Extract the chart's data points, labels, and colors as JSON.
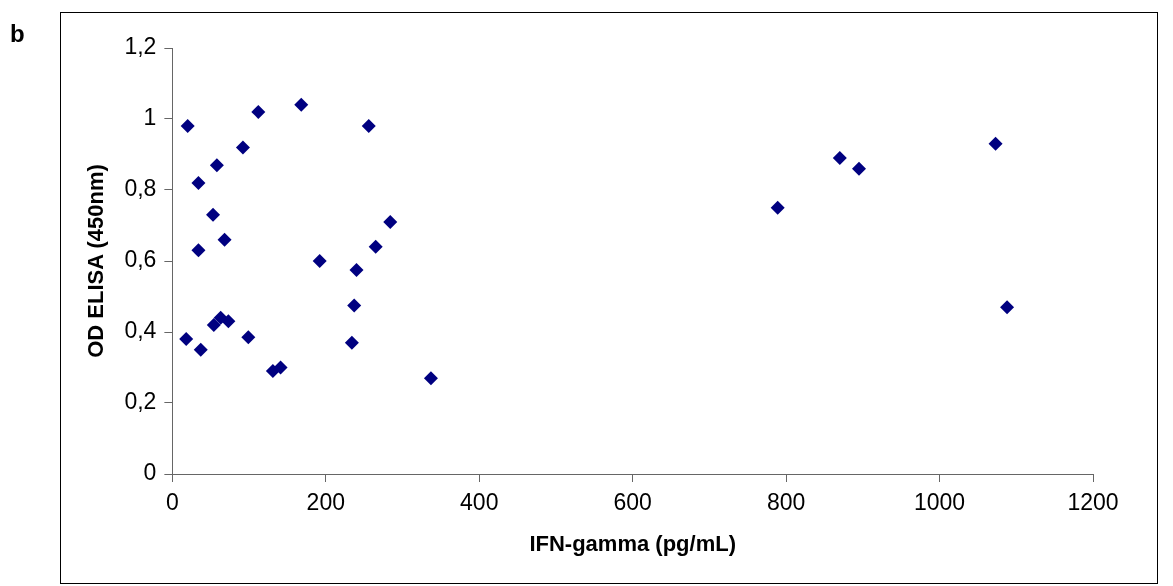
{
  "chart_data": {
    "type": "scatter",
    "xlabel": "IFN-gamma (pg/mL)",
    "ylabel": "OD ELISA (450nm)",
    "annotations": [
      "b"
    ],
    "x": [
      20,
      34,
      34,
      18,
      37,
      53,
      58,
      68,
      54,
      63,
      73,
      99,
      92,
      112,
      168,
      131,
      141,
      192,
      256,
      240,
      237,
      234,
      265,
      284,
      337,
      789,
      870,
      895,
      1073,
      1088
    ],
    "series": [
      {
        "color": "#000080",
        "values": [
          0.98,
          0.82,
          0.63,
          0.38,
          0.35,
          0.73,
          0.87,
          0.66,
          0.42,
          0.44,
          0.43,
          0.385,
          0.92,
          1.02,
          1.04,
          0.29,
          0.3,
          0.6,
          0.98,
          0.575,
          0.475,
          0.37,
          0.64,
          0.71,
          0.27,
          0.75,
          0.89,
          0.86,
          0.93,
          0.47
        ]
      }
    ],
    "xlim": [
      0,
      1200
    ],
    "xticks": [
      0,
      200,
      400,
      600,
      800,
      1000,
      1200
    ],
    "ylim": [
      0,
      1.2
    ],
    "yticks": [
      0,
      {
        "value": 0.2,
        "label": "0,2"
      },
      {
        "value": 0.4,
        "label": "0,4"
      },
      {
        "value": 0.6,
        "label": "0,6"
      },
      {
        "value": 0.8,
        "label": "0,8"
      },
      1,
      {
        "value": 1.2,
        "label": "1,2"
      }
    ],
    "grid": false,
    "legend": false,
    "marker": "diamond"
  }
}
